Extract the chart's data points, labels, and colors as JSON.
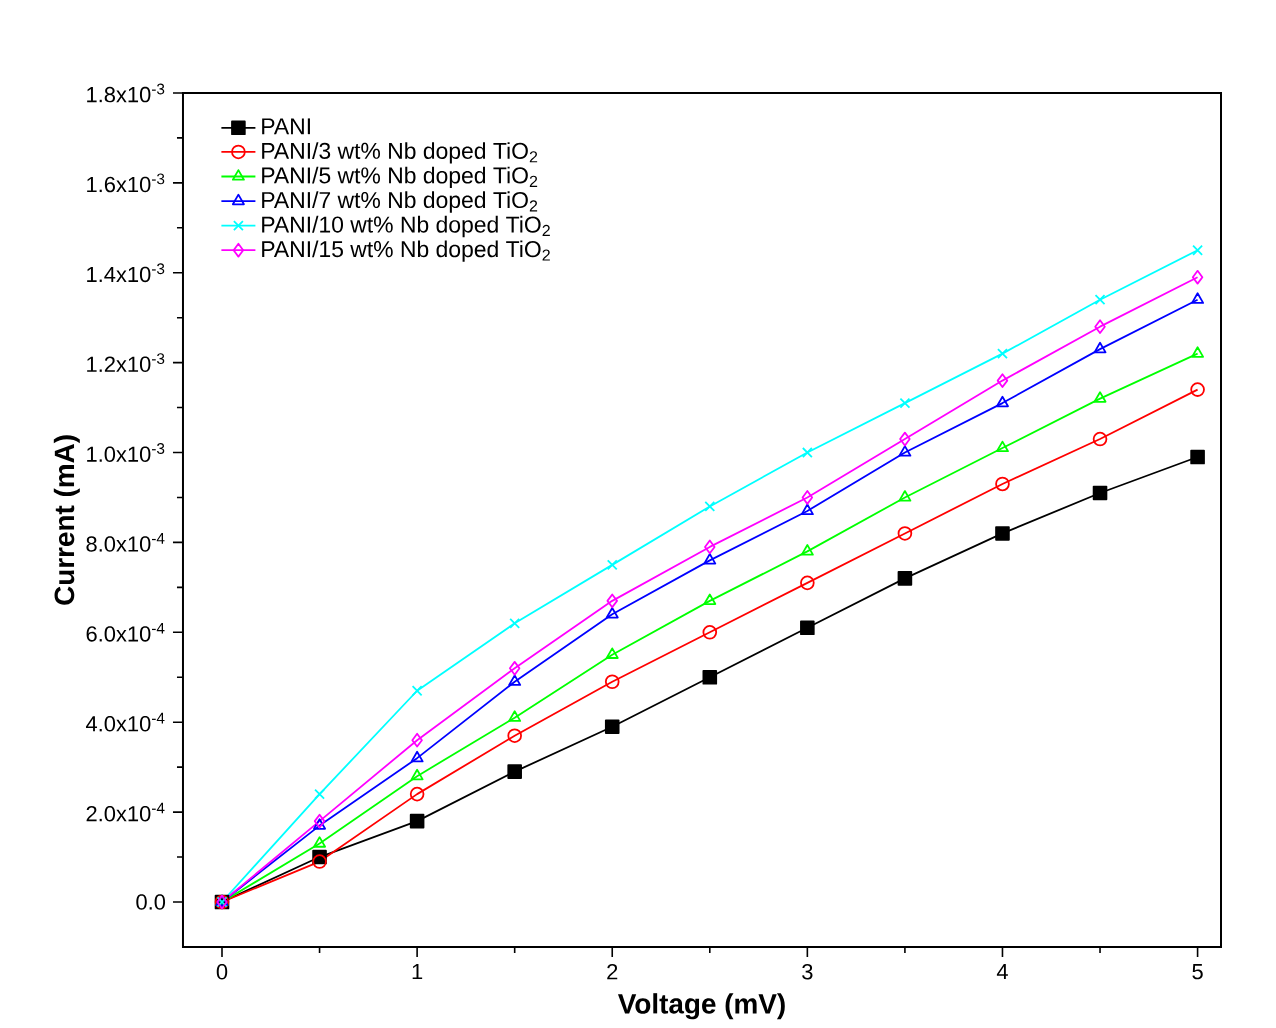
{
  "chart_data": {
    "type": "line",
    "xlabel": "Voltage (mV)",
    "ylabel": "Current (mA)",
    "x": [
      0,
      0.5,
      1,
      1.5,
      2,
      2.5,
      3,
      3.5,
      4,
      4.5,
      5
    ],
    "series": [
      {
        "name": "PANI",
        "color": "#000000",
        "marker": "square",
        "values": [
          0,
          0.0001,
          0.00018,
          0.00029,
          0.00039,
          0.0005,
          0.00061,
          0.00072,
          0.00082,
          0.00091,
          0.00099
        ]
      },
      {
        "name": "PANI/3 wt% Nb doped TiO$_{2}$",
        "color": "#ff0000",
        "marker": "circle",
        "values": [
          0,
          9e-05,
          0.00024,
          0.00037,
          0.00049,
          0.0006,
          0.00071,
          0.00082,
          0.00093,
          0.00103,
          0.00114
        ]
      },
      {
        "name": "PANI/5 wt% Nb doped TiO$_{2}$",
        "color": "#00ff00",
        "marker": "triangle",
        "values": [
          0,
          0.00013,
          0.00028,
          0.00041,
          0.00055,
          0.00067,
          0.00078,
          0.0009,
          0.00101,
          0.00112,
          0.00122
        ]
      },
      {
        "name": "PANI/7 wt% Nb doped TiO$_{2}$",
        "color": "#0000ff",
        "marker": "triangle",
        "values": [
          0,
          0.00017,
          0.00032,
          0.00049,
          0.00064,
          0.00076,
          0.00087,
          0.001,
          0.00111,
          0.00123,
          0.00134
        ]
      },
      {
        "name": "PANI/10 wt% Nb doped TiO$_{2}$",
        "color": "#00ffff",
        "marker": "cross",
        "values": [
          0,
          0.00024,
          0.00047,
          0.00062,
          0.00075,
          0.00088,
          0.001,
          0.00111,
          0.00122,
          0.00134,
          0.00145
        ]
      },
      {
        "name": "PANI/15 wt% Nb doped TiO$_{2}$",
        "color": "#ff00ff",
        "marker": "diamond",
        "values": [
          0,
          0.00018,
          0.00036,
          0.00052,
          0.00067,
          0.00079,
          0.0009,
          0.00103,
          0.00116,
          0.00128,
          0.00139
        ]
      }
    ],
    "xlim": [
      -0.2,
      5.12
    ],
    "ylim": [
      -0.0001,
      0.0018
    ],
    "xticks": [
      0,
      1,
      2,
      3,
      4,
      5
    ],
    "yticks": [
      {
        "value": 0,
        "label": "0.0"
      },
      {
        "value": 0.0002,
        "label": "2.0x10$^{-4}$"
      },
      {
        "value": 0.0004,
        "label": "4.0x10$^{-4}$"
      },
      {
        "value": 0.0006,
        "label": "6.0x10$^{-4}$"
      },
      {
        "value": 0.0008,
        "label": "8.0x10$^{-4}$"
      },
      {
        "value": 0.001,
        "label": "1.0x10$^{-3}$"
      },
      {
        "value": 0.0012,
        "label": "1.2x10$^{-3}$"
      },
      {
        "value": 0.0014,
        "label": "1.4x10$^{-3}$"
      },
      {
        "value": 0.0016,
        "label": "1.6x10$^{-3}$"
      },
      {
        "value": 0.0018,
        "label": "1.8x10$^{-3}$"
      }
    ],
    "grid": false,
    "legend": "top left"
  }
}
